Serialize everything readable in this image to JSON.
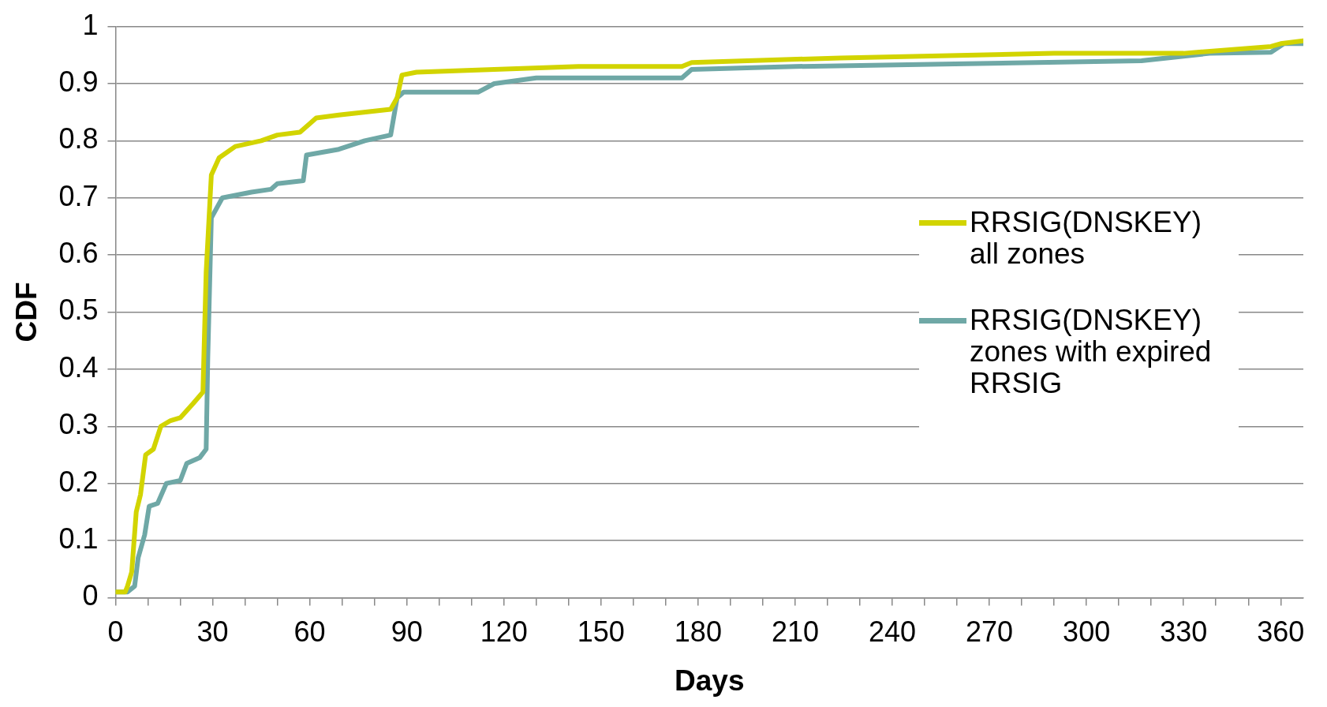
{
  "chart_data": {
    "type": "line",
    "xlabel": "Days",
    "ylabel": "CDF",
    "xlim": [
      0,
      367
    ],
    "ylim": [
      0,
      1
    ],
    "xticks": [
      0,
      {
        "value": 10,
        "label": null
      },
      {
        "value": 20,
        "label": null
      },
      30,
      {
        "value": 40,
        "label": null
      },
      {
        "value": 50,
        "label": null
      },
      60,
      {
        "value": 70,
        "label": null
      },
      {
        "value": 80,
        "label": null
      },
      90,
      {
        "value": 100,
        "label": null
      },
      {
        "value": 110,
        "label": null
      },
      120,
      {
        "value": 130,
        "label": null
      },
      {
        "value": 140,
        "label": null
      },
      150,
      {
        "value": 160,
        "label": null
      },
      {
        "value": 170,
        "label": null
      },
      180,
      {
        "value": 190,
        "label": null
      },
      {
        "value": 200,
        "label": null
      },
      210,
      {
        "value": 220,
        "label": null
      },
      {
        "value": 230,
        "label": null
      },
      240,
      {
        "value": 250,
        "label": null
      },
      {
        "value": 260,
        "label": null
      },
      270,
      {
        "value": 280,
        "label": null
      },
      {
        "value": 290,
        "label": null
      },
      300,
      {
        "value": 310,
        "label": null
      },
      {
        "value": 320,
        "label": null
      },
      330,
      {
        "value": 340,
        "label": null
      },
      {
        "value": 350,
        "label": null
      },
      360
    ],
    "yticks": [
      0,
      0.1,
      0.2,
      0.3,
      0.4,
      0.5,
      0.6,
      0.7,
      0.8,
      0.9,
      1
    ],
    "grid": "y",
    "legend": "right",
    "marker": "none",
    "line_style": "solid",
    "series": [
      {
        "name": "RRSIG(DNSKEY) all zones",
        "color": "#d2d400",
        "x": [
          0,
          3,
          3.7,
          5,
          6.4,
          7.7,
          9.3,
          11.7,
          14,
          17,
          20,
          24,
          27,
          28,
          29.6,
          32,
          37,
          45,
          50,
          57,
          60,
          62,
          69,
          85,
          87,
          88.5,
          93,
          117,
          143,
          175,
          178,
          224,
          290,
          330,
          357,
          360,
          367
        ],
        "values": [
          0.01,
          0.01,
          0.02,
          0.045,
          0.15,
          0.18,
          0.25,
          0.26,
          0.3,
          0.31,
          0.315,
          0.34,
          0.36,
          0.57,
          0.74,
          0.77,
          0.79,
          0.8,
          0.81,
          0.815,
          0.83,
          0.84,
          0.845,
          0.855,
          0.875,
          0.915,
          0.92,
          0.925,
          0.93,
          0.93,
          0.937,
          0.945,
          0.953,
          0.953,
          0.965,
          0.97,
          0.975
        ]
      },
      {
        "name": "RRSIG(DNSKEY) zones with expired RRSIG",
        "color": "#6fa8a6",
        "x": [
          0,
          3.7,
          5.9,
          7,
          9,
          10.4,
          13,
          15.7,
          20,
          22,
          26,
          28,
          28.5,
          29.6,
          33,
          42,
          48,
          50,
          58,
          59,
          69,
          77,
          85,
          87,
          89,
          112,
          117,
          130,
          175,
          178,
          210,
          263,
          317,
          338,
          357,
          361,
          367
        ],
        "values": [
          0.01,
          0.01,
          0.02,
          0.07,
          0.11,
          0.16,
          0.165,
          0.2,
          0.205,
          0.235,
          0.245,
          0.26,
          0.42,
          0.665,
          0.7,
          0.71,
          0.715,
          0.725,
          0.73,
          0.775,
          0.785,
          0.8,
          0.81,
          0.875,
          0.885,
          0.885,
          0.9,
          0.91,
          0.91,
          0.925,
          0.93,
          0.935,
          0.94,
          0.953,
          0.955,
          0.97,
          0.97
        ]
      }
    ]
  }
}
